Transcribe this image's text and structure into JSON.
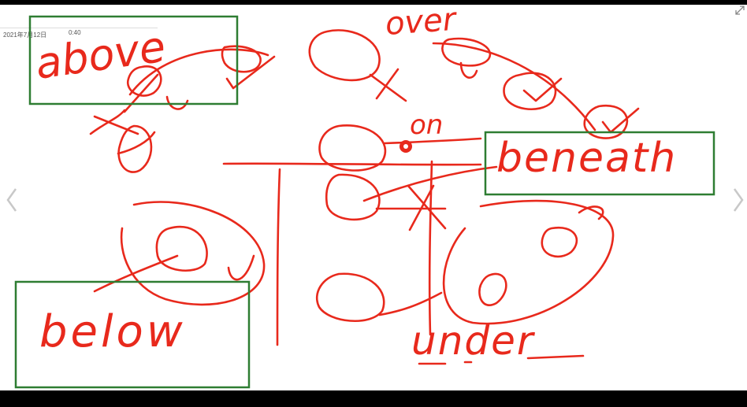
{
  "header": {
    "date": "2021年7月12日",
    "time": "0:40"
  },
  "ink": {
    "stroke_color": "#e8291c",
    "box_color": "#2e7d32",
    "words": {
      "above": "above",
      "over": "over",
      "on": "on",
      "beneath": "beneath",
      "below": "below",
      "under": "under"
    }
  },
  "nav": {
    "prev_icon": "chevron-left-icon",
    "next_icon": "chevron-right-icon",
    "expand_icon": "expand-icon"
  }
}
